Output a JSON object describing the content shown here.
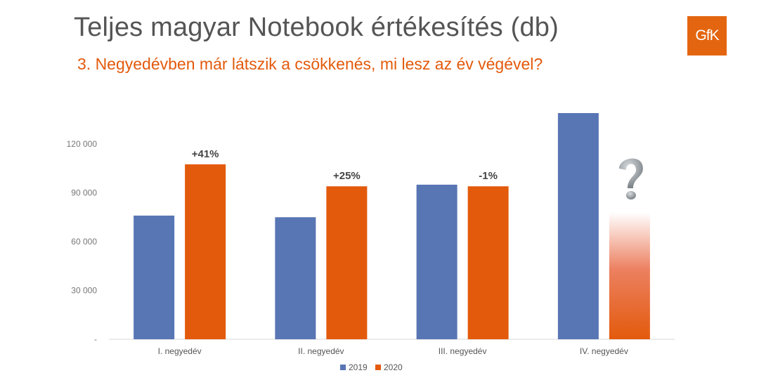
{
  "title": "Teljes magyar Notebook értékesítés (db)",
  "subtitle": "3. Negyedévben már látszik a csökkenés, mi lesz az év végével?",
  "logo": "GfK",
  "chart_data": {
    "type": "bar",
    "title": "Teljes magyar Notebook értékesítés (db)",
    "categories": [
      "I. negyedév",
      "II. negyedév",
      "III. negyedév",
      "IV. negyedév"
    ],
    "series": [
      {
        "name": "2019",
        "color": "#5875b4",
        "values": [
          76000,
          75000,
          95000,
          139000
        ]
      },
      {
        "name": "2020",
        "color": "#e35a0c",
        "values": [
          107500,
          94000,
          94000,
          null
        ]
      }
    ],
    "data_labels": [
      "+41%",
      "+25%",
      "-1%",
      ""
    ],
    "yticks": [
      0,
      30000,
      60000,
      90000,
      120000
    ],
    "ytick_labels": [
      "-",
      "30 000",
      "60 000",
      "90 000",
      "120 000"
    ],
    "ylim": [
      0,
      140000
    ],
    "grid": false,
    "legend": "bottom",
    "annotation_icon": "question-mark-icon"
  }
}
